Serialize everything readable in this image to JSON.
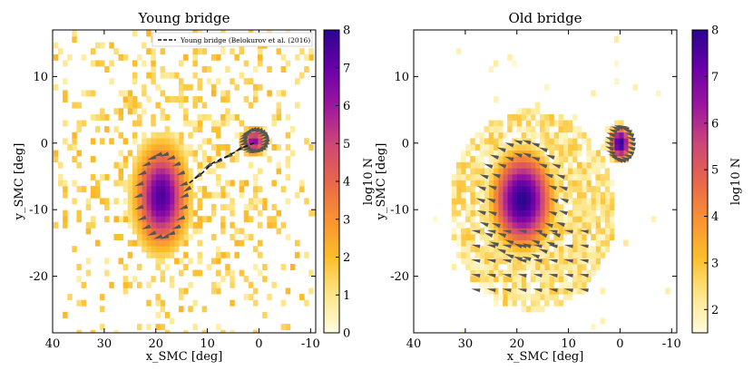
{
  "chart_data": [
    {
      "type": "heatmap",
      "title": "Young bridge",
      "xlabel": "x_SMC [deg]",
      "ylabel": "y_SMC [deg]",
      "xlim": [
        40,
        -11
      ],
      "ylim": [
        -28.5,
        17
      ],
      "xticks": [
        40,
        30,
        20,
        10,
        0,
        -10
      ],
      "yticks": [
        10,
        0,
        -10,
        -20
      ],
      "legend": {
        "label": "Young bridge (Belokurov et al. (2016)",
        "location": "top-right",
        "line_style": "dashed"
      },
      "colorbar": {
        "label": "log10 N",
        "range": [
          0,
          8
        ],
        "ticks": [
          0,
          1,
          2,
          3,
          4,
          5,
          6,
          7,
          8
        ],
        "colormap": "plasma_r"
      },
      "density_blobs": [
        {
          "name": "SMC body",
          "x": 19,
          "y": -8,
          "peak": 7.5,
          "sx": 3.3,
          "sy": 5
        },
        {
          "name": "LMC wing",
          "x": 1,
          "y": 0.3,
          "peak": 6.5,
          "sx": 1.6,
          "sy": 1.3
        }
      ],
      "reference_line": {
        "x": [
          13.5,
          11,
          9,
          7,
          5,
          3.5,
          2,
          1
        ],
        "y": [
          -6,
          -4.5,
          -3,
          -2.3,
          -1.5,
          -0.8,
          -0.3,
          0
        ]
      }
    },
    {
      "type": "heatmap",
      "title": "Old bridge",
      "xlabel": "x_SMC [deg]",
      "ylabel": "y_SMC [deg]",
      "xlim": [
        40,
        -11
      ],
      "ylim": [
        -28.5,
        17
      ],
      "xticks": [
        40,
        30,
        20,
        10,
        0,
        -10
      ],
      "yticks": [
        10,
        0,
        -10,
        -20
      ],
      "colorbar": {
        "label": "log10 N",
        "range": [
          1.5,
          8
        ],
        "ticks": [
          2,
          3,
          4,
          5,
          6,
          7,
          8
        ],
        "colormap": "plasma_r"
      },
      "density_blobs": [
        {
          "name": "SMC body",
          "x": 19,
          "y": -8.5,
          "peak": 8,
          "sx": 4.5,
          "sy": 5.5
        },
        {
          "name": "LMC",
          "x": 0,
          "y": 0,
          "peak": 8,
          "sx": 1.6,
          "sy": 2
        }
      ]
    }
  ],
  "colors": {
    "colormap_stops": [
      "#fffce0",
      "#fde68a",
      "#fcbd2a",
      "#f99233",
      "#e8664b",
      "#cc4778",
      "#9c179e",
      "#6a00a8",
      "#2b0590"
    ],
    "arrow": "#555555",
    "reference_line": "#111111"
  }
}
